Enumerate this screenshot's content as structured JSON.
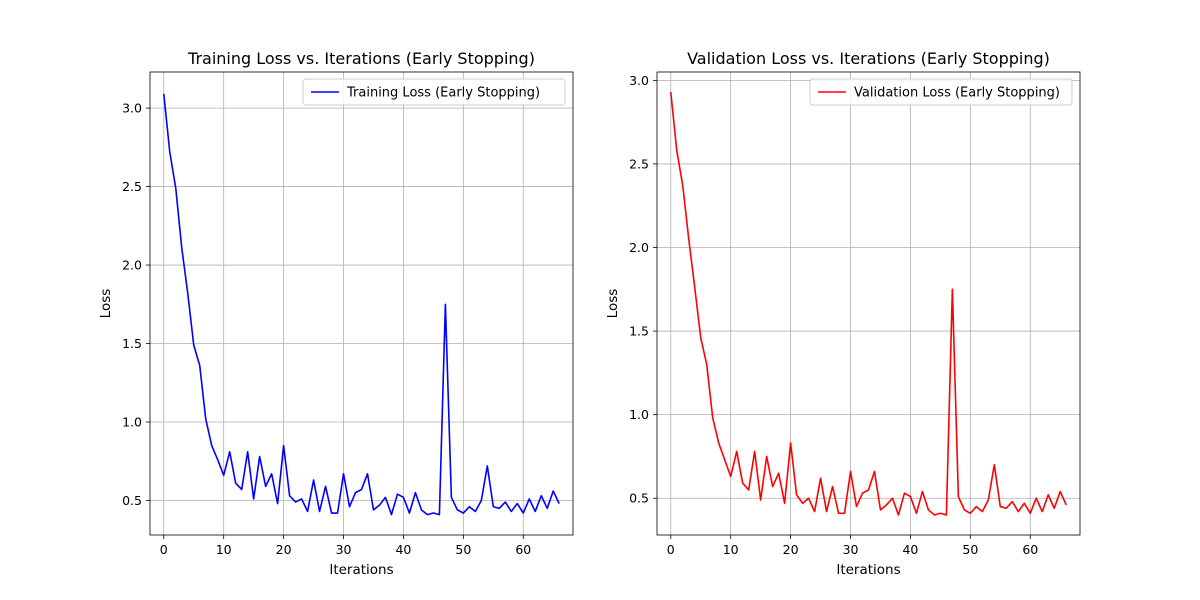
{
  "chart_data": [
    {
      "type": "line",
      "title": "Training Loss vs. Iterations (Early Stopping)",
      "xlabel": "Iterations",
      "ylabel": "Loss",
      "xlim": [
        -2.3,
        68.3
      ],
      "ylim": [
        0.28,
        3.23
      ],
      "xticks": [
        0,
        10,
        20,
        30,
        40,
        50,
        60
      ],
      "yticks": [
        0.5,
        1.0,
        1.5,
        2.0,
        2.5,
        3.0
      ],
      "ytick_labels": [
        "0.5",
        "1.0",
        "1.5",
        "2.0",
        "2.5",
        "3.0"
      ],
      "grid": true,
      "legend_position": "top-right",
      "series": [
        {
          "name": "Training Loss (Early Stopping)",
          "color": "#0000ff",
          "x": [
            0,
            1,
            2,
            3,
            4,
            5,
            6,
            7,
            8,
            9,
            10,
            11,
            12,
            13,
            14,
            15,
            16,
            17,
            18,
            19,
            20,
            21,
            22,
            23,
            24,
            25,
            26,
            27,
            28,
            29,
            30,
            31,
            32,
            33,
            34,
            35,
            36,
            37,
            38,
            39,
            40,
            41,
            42,
            43,
            44,
            45,
            46,
            47,
            48,
            49,
            50,
            51,
            52,
            53,
            54,
            55,
            56,
            57,
            58,
            59,
            60,
            61,
            62,
            63,
            64,
            65,
            66
          ],
          "y": [
            3.09,
            2.72,
            2.49,
            2.11,
            1.82,
            1.49,
            1.36,
            1.02,
            0.85,
            0.76,
            0.66,
            0.81,
            0.61,
            0.57,
            0.81,
            0.51,
            0.78,
            0.59,
            0.67,
            0.48,
            0.85,
            0.53,
            0.49,
            0.51,
            0.43,
            0.63,
            0.43,
            0.59,
            0.42,
            0.42,
            0.67,
            0.46,
            0.55,
            0.57,
            0.67,
            0.44,
            0.47,
            0.52,
            0.41,
            0.54,
            0.52,
            0.42,
            0.55,
            0.44,
            0.41,
            0.42,
            0.41,
            1.75,
            0.52,
            0.44,
            0.42,
            0.46,
            0.43,
            0.5,
            0.72,
            0.46,
            0.45,
            0.49,
            0.43,
            0.48,
            0.42,
            0.51,
            0.43,
            0.53,
            0.45,
            0.56,
            0.48
          ]
        }
      ]
    },
    {
      "type": "line",
      "title": "Validation Loss vs. Iterations (Early Stopping)",
      "xlabel": "Iterations",
      "ylabel": "Loss",
      "xlim": [
        -2.3,
        68.3
      ],
      "ylim": [
        0.28,
        3.05
      ],
      "xticks": [
        0,
        10,
        20,
        30,
        40,
        50,
        60
      ],
      "yticks": [
        0.5,
        1.0,
        1.5,
        2.0,
        2.5,
        3.0
      ],
      "ytick_labels": [
        "0.5",
        "1.0",
        "1.5",
        "2.0",
        "2.5",
        "3.0"
      ],
      "grid": true,
      "legend_position": "top-right",
      "series": [
        {
          "name": "Validation Loss (Early Stopping)",
          "color": "#ff0000",
          "x": [
            0,
            1,
            2,
            3,
            4,
            5,
            6,
            7,
            8,
            9,
            10,
            11,
            12,
            13,
            14,
            15,
            16,
            17,
            18,
            19,
            20,
            21,
            22,
            23,
            24,
            25,
            26,
            27,
            28,
            29,
            30,
            31,
            32,
            33,
            34,
            35,
            36,
            37,
            38,
            39,
            40,
            41,
            42,
            43,
            44,
            45,
            46,
            47,
            48,
            49,
            50,
            51,
            52,
            53,
            54,
            55,
            56,
            57,
            58,
            59,
            60,
            61,
            62,
            63,
            64,
            65,
            66
          ],
          "y": [
            2.93,
            2.58,
            2.37,
            2.05,
            1.76,
            1.46,
            1.3,
            0.98,
            0.83,
            0.73,
            0.63,
            0.78,
            0.59,
            0.55,
            0.78,
            0.49,
            0.75,
            0.57,
            0.65,
            0.47,
            0.83,
            0.52,
            0.47,
            0.5,
            0.42,
            0.62,
            0.42,
            0.57,
            0.41,
            0.41,
            0.66,
            0.45,
            0.53,
            0.55,
            0.66,
            0.43,
            0.46,
            0.5,
            0.4,
            0.53,
            0.51,
            0.41,
            0.54,
            0.43,
            0.4,
            0.41,
            0.4,
            1.75,
            0.51,
            0.43,
            0.41,
            0.45,
            0.42,
            0.49,
            0.7,
            0.45,
            0.44,
            0.48,
            0.42,
            0.47,
            0.41,
            0.5,
            0.42,
            0.52,
            0.44,
            0.54,
            0.46
          ]
        }
      ]
    }
  ]
}
